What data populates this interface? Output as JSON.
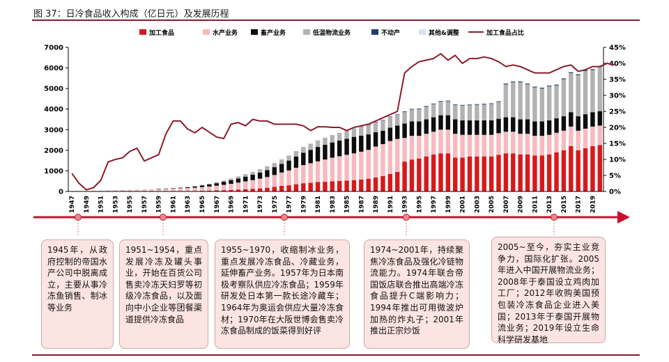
{
  "figure_title": "图 37：日冷食品收入构成（亿日元）及发展历程",
  "chart_data": {
    "type": "bar",
    "stacked": true,
    "title": "",
    "xlabel": "",
    "ylabel": "",
    "ylabel_right": "",
    "ylim": [
      0,
      7000
    ],
    "ylim_right": [
      0,
      45
    ],
    "y_ticks": [
      0,
      1000,
      2000,
      3000,
      4000,
      5000,
      6000,
      7000
    ],
    "y_right_ticks": [
      "0%",
      "5%",
      "10%",
      "15%",
      "20%",
      "25%",
      "30%",
      "35%",
      "40%",
      "45%"
    ],
    "legend_position": "top",
    "grid": false,
    "x_start": 1947,
    "x_end": 2020,
    "x_tick_labels": [
      "1947",
      "1949",
      "1951",
      "1953",
      "1955",
      "1957",
      "1959",
      "1961",
      "1963",
      "1965",
      "1967",
      "1969",
      "1971",
      "1973",
      "1975",
      "1977",
      "1979",
      "1981",
      "1983",
      "1985",
      "1987",
      "1989",
      "1991",
      "1993",
      "1995",
      "1997",
      "1999",
      "2001",
      "2003",
      "2005",
      "2007",
      "2009",
      "2011",
      "2013",
      "2015",
      "2017",
      "2019"
    ],
    "series": [
      {
        "name": "加工食品",
        "color": "#d7191c",
        "values": [
          0,
          0,
          0,
          0,
          0,
          0,
          0,
          0,
          0,
          0,
          5,
          5,
          10,
          10,
          15,
          20,
          20,
          25,
          30,
          40,
          50,
          60,
          70,
          90,
          110,
          130,
          150,
          180,
          220,
          270,
          300,
          350,
          400,
          420,
          460,
          470,
          490,
          510,
          530,
          550,
          580,
          620,
          680,
          750,
          850,
          950,
          1450,
          1550,
          1600,
          1700,
          1800,
          1850,
          1850,
          1650,
          1650,
          1700,
          1700,
          1700,
          1700,
          1780,
          1850,
          1850,
          1800,
          1800,
          1750,
          1750,
          1800,
          1900,
          2000,
          2200,
          2000,
          2100,
          2200,
          2250,
          2300,
          2250
        ]
      },
      {
        "name": "水产业务",
        "color": "#f7b9bf",
        "values": [
          0,
          0,
          20,
          30,
          40,
          50,
          60,
          70,
          80,
          90,
          95,
          100,
          110,
          120,
          130,
          140,
          150,
          160,
          180,
          200,
          230,
          260,
          300,
          340,
          380,
          420,
          470,
          520,
          580,
          650,
          720,
          800,
          880,
          950,
          1000,
          1080,
          1150,
          1200,
          1250,
          1300,
          1350,
          1400,
          1500,
          1550,
          1600,
          1600,
          1150,
          1150,
          1100,
          1100,
          1100,
          1150,
          1150,
          1150,
          1100,
          1050,
          1050,
          1050,
          1050,
          1050,
          1050,
          1050,
          1000,
          1000,
          950,
          950,
          950,
          950,
          950,
          950,
          950,
          950,
          950,
          950,
          950,
          950
        ]
      },
      {
        "name": "畜产业务",
        "color": "#0d0d0d",
        "values": [
          0,
          0,
          0,
          0,
          0,
          0,
          0,
          0,
          0,
          0,
          0,
          0,
          10,
          10,
          20,
          30,
          40,
          60,
          80,
          100,
          120,
          150,
          180,
          200,
          230,
          260,
          300,
          340,
          380,
          420,
          480,
          550,
          600,
          650,
          700,
          720,
          740,
          760,
          780,
          800,
          780,
          750,
          700,
          650,
          650,
          650,
          700,
          700,
          700,
          700,
          700,
          700,
          700,
          700,
          700,
          700,
          700,
          700,
          700,
          700,
          700,
          700,
          700,
          700,
          700,
          700,
          700,
          700,
          700,
          700,
          700,
          700,
          700,
          700,
          700,
          600
        ]
      },
      {
        "name": "低温物流业务",
        "color": "#b2b2b2",
        "values": [
          0,
          0,
          0,
          0,
          0,
          0,
          0,
          0,
          0,
          0,
          0,
          0,
          0,
          0,
          0,
          5,
          10,
          20,
          30,
          40,
          50,
          60,
          80,
          100,
          120,
          140,
          160,
          180,
          200,
          220,
          240,
          260,
          280,
          300,
          320,
          340,
          360,
          380,
          400,
          420,
          440,
          460,
          480,
          500,
          520,
          540,
          560,
          580,
          600,
          620,
          640,
          660,
          680,
          700,
          720,
          740,
          760,
          780,
          800,
          820,
          1600,
          1700,
          1800,
          1700,
          1650,
          1600,
          1650,
          1600,
          1800,
          1900,
          2000,
          2100,
          2050,
          2150,
          2100,
          2100
        ]
      },
      {
        "name": "不动产",
        "color": "#1f3f6e",
        "values": [
          0,
          0,
          0,
          0,
          0,
          0,
          0,
          0,
          0,
          0,
          0,
          0,
          0,
          0,
          0,
          0,
          0,
          0,
          0,
          0,
          0,
          0,
          0,
          0,
          0,
          0,
          0,
          0,
          0,
          0,
          0,
          0,
          0,
          0,
          0,
          0,
          0,
          0,
          0,
          0,
          10,
          20,
          20,
          20,
          20,
          20,
          30,
          30,
          30,
          30,
          30,
          30,
          30,
          30,
          30,
          30,
          30,
          30,
          30,
          30,
          40,
          40,
          40,
          40,
          40,
          40,
          40,
          40,
          40,
          40,
          40,
          40,
          40,
          40,
          40,
          40
        ]
      },
      {
        "name": "其他&调整",
        "color": "#d6e4f5",
        "values": [
          0,
          0,
          0,
          0,
          0,
          0,
          0,
          0,
          0,
          0,
          0,
          0,
          0,
          0,
          0,
          0,
          0,
          0,
          0,
          0,
          0,
          0,
          0,
          0,
          0,
          0,
          0,
          0,
          0,
          0,
          0,
          0,
          0,
          0,
          0,
          0,
          0,
          0,
          0,
          0,
          0,
          0,
          0,
          0,
          0,
          0,
          0,
          0,
          0,
          0,
          0,
          0,
          0,
          0,
          0,
          0,
          0,
          0,
          0,
          0,
          0,
          0,
          0,
          0,
          0,
          0,
          0,
          0,
          0,
          0,
          0,
          0,
          0,
          0,
          0,
          0
        ]
      }
    ],
    "line_series": {
      "name": "加工食品占比",
      "color": "#8b1a2a",
      "axis": "right",
      "values": [
        5.6,
        2.5,
        0.5,
        1.2,
        3.5,
        9.2,
        10.0,
        10.5,
        12.5,
        13.5,
        9.5,
        10.5,
        11.5,
        18.0,
        22.0,
        22.0,
        19.5,
        18.3,
        20.0,
        18.5,
        17.0,
        16.5,
        21.0,
        21.5,
        20.5,
        22.5,
        22.0,
        22.0,
        21.0,
        21.0,
        21.0,
        21.0,
        20.5,
        19.0,
        20.2,
        20.2,
        20.0,
        20.0,
        19.0,
        20.0,
        20.5,
        21.0,
        22.0,
        23.0,
        24.0,
        25.0,
        37.0,
        39.0,
        40.5,
        41.0,
        41.5,
        43.0,
        41.0,
        42.5,
        40.0,
        41.5,
        41.5,
        42.0,
        41.5,
        40.5,
        39.0,
        39.5,
        39.0,
        38.0,
        37.0,
        37.0,
        37.0,
        38.0,
        39.0,
        39.5,
        37.5,
        38.0,
        39.0,
        39.0,
        40.0,
        39.5
      ]
    }
  },
  "callouts": [
    {
      "text": "1945年，从政府控制的帝国水产公司中脱离成立，主要从事冷冻鱼销售、制冰等业务"
    },
    {
      "text": "1951~1954，重点发展冷冻及罐头事业，开始在百货公司售卖冷冻天妇罗等初级冷冻食品，以及面向中小企业等团餐渠道提供冷冻食品"
    },
    {
      "text": "1955~1970，收缩制冰业务，重点发展冷冻食品、冷藏业务，延伸畜产业务。1957年为日本南极考察队供应冷冻食品；1959年研发处日本第一款长途冷藏车；1964年为奥运会供应大量冷冻食材；1970年在大阪世博会售卖冷冻食品制成的饭菜得到好评"
    },
    {
      "text": "1974~2001年，持续聚焦冷冻食品及强化冷链物流能力。1974年联合帝国饭店联合推出高端冷冻食品提升C端影响力；1994年推出可用微波炉加热的炸丸子；2001年推出正宗炒饭"
    },
    {
      "text": "2005~至今，夯实主业竞争力，国际化扩张。2005年进入中国开展物流业务；2008年于泰国设立鸡肉加工厂；2012年收购美国预包装冷冻食品企业进入美国；2013年于泰国开展物流业务；2019年设立生命科学研发基地"
    }
  ]
}
